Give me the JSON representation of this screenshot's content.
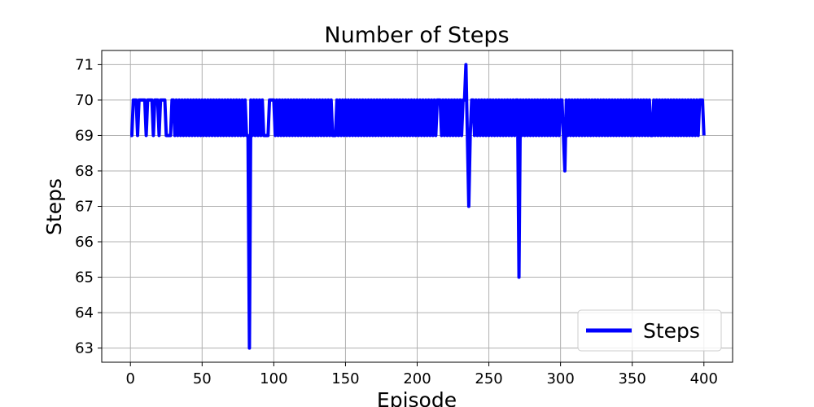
{
  "chart_data": {
    "type": "line",
    "title": "Number of Steps",
    "x_label": "Episode",
    "y_label": "Steps",
    "x": [
      0,
      1,
      2,
      3,
      4,
      5,
      6,
      7,
      8,
      9,
      10,
      11,
      12,
      13,
      14,
      15,
      16,
      17,
      18,
      19,
      20,
      21,
      22,
      23,
      24,
      25,
      26,
      27,
      28,
      29,
      30,
      31,
      32,
      33,
      34,
      35,
      36,
      37,
      38,
      39,
      40,
      41,
      42,
      43,
      44,
      45,
      46,
      47,
      48,
      49,
      50,
      51,
      52,
      53,
      54,
      55,
      56,
      57,
      58,
      59,
      60,
      61,
      62,
      63,
      64,
      65,
      66,
      67,
      68,
      69,
      70,
      71,
      72,
      73,
      74,
      75,
      76,
      77,
      78,
      79,
      80,
      81,
      82,
      83,
      84,
      85,
      86,
      87,
      88,
      89,
      90,
      91,
      92,
      93,
      94,
      95,
      96,
      97,
      98,
      99,
      100,
      101,
      102,
      103,
      104,
      105,
      106,
      107,
      108,
      109,
      110,
      111,
      112,
      113,
      114,
      115,
      116,
      117,
      118,
      119,
      120,
      121,
      122,
      123,
      124,
      125,
      126,
      127,
      128,
      129,
      130,
      131,
      132,
      133,
      134,
      135,
      136,
      137,
      138,
      139,
      140,
      141,
      142,
      143,
      144,
      145,
      146,
      147,
      148,
      149,
      150,
      151,
      152,
      153,
      154,
      155,
      156,
      157,
      158,
      159,
      160,
      161,
      162,
      163,
      164,
      165,
      166,
      167,
      168,
      169,
      170,
      171,
      172,
      173,
      174,
      175,
      176,
      177,
      178,
      179,
      180,
      181,
      182,
      183,
      184,
      185,
      186,
      187,
      188,
      189,
      190,
      191,
      192,
      193,
      194,
      195,
      196,
      197,
      198,
      199,
      200,
      201,
      202,
      203,
      204,
      205,
      206,
      207,
      208,
      209,
      210,
      211,
      212,
      213,
      214,
      215,
      216,
      217,
      218,
      219,
      220,
      221,
      222,
      223,
      224,
      225,
      226,
      227,
      228,
      229,
      230,
      231,
      232,
      233,
      234,
      235,
      236,
      237,
      238,
      239,
      240,
      241,
      242,
      243,
      244,
      245,
      246,
      247,
      248,
      249,
      250,
      251,
      252,
      253,
      254,
      255,
      256,
      257,
      258,
      259,
      260,
      261,
      262,
      263,
      264,
      265,
      266,
      267,
      268,
      269,
      270,
      271,
      272,
      273,
      274,
      275,
      276,
      277,
      278,
      279,
      280,
      281,
      282,
      283,
      284,
      285,
      286,
      287,
      288,
      289,
      290,
      291,
      292,
      293,
      294,
      295,
      296,
      297,
      298,
      299,
      300,
      301,
      302,
      303,
      304,
      305,
      306,
      307,
      308,
      309,
      310,
      311,
      312,
      313,
      314,
      315,
      316,
      317,
      318,
      319,
      320,
      321,
      322,
      323,
      324,
      325,
      326,
      327,
      328,
      329,
      330,
      331,
      332,
      333,
      334,
      335,
      336,
      337,
      338,
      339,
      340,
      341,
      342,
      343,
      344,
      345,
      346,
      347,
      348,
      349,
      350,
      351,
      352,
      353,
      354,
      355,
      356,
      357,
      358,
      359,
      360,
      361,
      362,
      363,
      364,
      365,
      366,
      367,
      368,
      369,
      370,
      371,
      372,
      373,
      374,
      375,
      376,
      377,
      378,
      379,
      380,
      381,
      382,
      383,
      384,
      385,
      386,
      387,
      388,
      389,
      390,
      391,
      392,
      393,
      394,
      395,
      396,
      397,
      398,
      399,
      400
    ],
    "series": [
      {
        "name": "Steps",
        "color": "#0000ff",
        "values": [
          69,
          69,
          70,
          70,
          70,
          69,
          70,
          70,
          70,
          70,
          70,
          69,
          70,
          70,
          70,
          70,
          69,
          70,
          70,
          70,
          69,
          70,
          70,
          70,
          70,
          69,
          69,
          69,
          69,
          70,
          70,
          69,
          70,
          69,
          70,
          69,
          70,
          69,
          70,
          69,
          70,
          69,
          70,
          69,
          70,
          69,
          70,
          69,
          70,
          69,
          70,
          69,
          70,
          69,
          70,
          69,
          70,
          69,
          70,
          69,
          70,
          69,
          70,
          69,
          70,
          69,
          70,
          69,
          70,
          69,
          70,
          69,
          70,
          69,
          70,
          69,
          70,
          69,
          70,
          69,
          70,
          69,
          69,
          63,
          70,
          69,
          70,
          69,
          70,
          69,
          70,
          69,
          70,
          69,
          69,
          69,
          69,
          70,
          70,
          70,
          70,
          69,
          70,
          69,
          70,
          69,
          70,
          69,
          70,
          69,
          70,
          69,
          70,
          69,
          70,
          69,
          70,
          69,
          70,
          69,
          70,
          69,
          70,
          69,
          70,
          69,
          70,
          69,
          70,
          69,
          70,
          69,
          70,
          69,
          70,
          69,
          70,
          69,
          70,
          69,
          70,
          69,
          69,
          69,
          70,
          69,
          70,
          69,
          70,
          69,
          70,
          69,
          70,
          69,
          70,
          69,
          70,
          69,
          70,
          69,
          70,
          69,
          70,
          69,
          70,
          69,
          70,
          69,
          70,
          69,
          70,
          69,
          70,
          69,
          70,
          69,
          70,
          69,
          70,
          69,
          70,
          69,
          70,
          69,
          70,
          69,
          70,
          69,
          70,
          69,
          70,
          69,
          70,
          69,
          70,
          69,
          70,
          69,
          70,
          69,
          70,
          69,
          70,
          69,
          70,
          69,
          70,
          69,
          70,
          69,
          70,
          69,
          70,
          69,
          70,
          70,
          70,
          69,
          70,
          69,
          70,
          69,
          70,
          69,
          70,
          69,
          70,
          69,
          70,
          69,
          70,
          69,
          70,
          70,
          71,
          69,
          67,
          69,
          70,
          70,
          69,
          70,
          69,
          70,
          69,
          70,
          69,
          70,
          69,
          70,
          69,
          70,
          69,
          70,
          69,
          70,
          69,
          70,
          69,
          70,
          69,
          70,
          69,
          70,
          69,
          70,
          69,
          70,
          69,
          70,
          70,
          65,
          70,
          69,
          70,
          69,
          70,
          69,
          70,
          69,
          70,
          69,
          70,
          69,
          70,
          69,
          70,
          69,
          70,
          69,
          70,
          69,
          70,
          69,
          70,
          69,
          70,
          69,
          70,
          69,
          70,
          70,
          69,
          68,
          70,
          69,
          70,
          69,
          70,
          69,
          70,
          69,
          70,
          69,
          70,
          69,
          70,
          69,
          70,
          69,
          70,
          69,
          70,
          69,
          70,
          69,
          70,
          69,
          70,
          69,
          70,
          69,
          70,
          69,
          70,
          69,
          70,
          69,
          70,
          69,
          70,
          69,
          70,
          69,
          70,
          69,
          70,
          69,
          70,
          69,
          70,
          69,
          70,
          69,
          70,
          69,
          70,
          69,
          70,
          69,
          70,
          69,
          70,
          69,
          69,
          70,
          69,
          70,
          69,
          70,
          69,
          70,
          69,
          70,
          69,
          70,
          69,
          70,
          69,
          70,
          69,
          70,
          69,
          70,
          69,
          70,
          69,
          70,
          69,
          70,
          69,
          70,
          69,
          70,
          69,
          70,
          69,
          70,
          70,
          70,
          69
        ]
      }
    ],
    "xlim": [
      -20,
      420
    ],
    "ylim": [
      62.6,
      71.4
    ],
    "xticks": [
      0,
      50,
      100,
      150,
      200,
      250,
      300,
      350,
      400
    ],
    "yticks": [
      63,
      64,
      65,
      66,
      67,
      68,
      69,
      70,
      71
    ],
    "grid": true,
    "legend": "lower right"
  }
}
